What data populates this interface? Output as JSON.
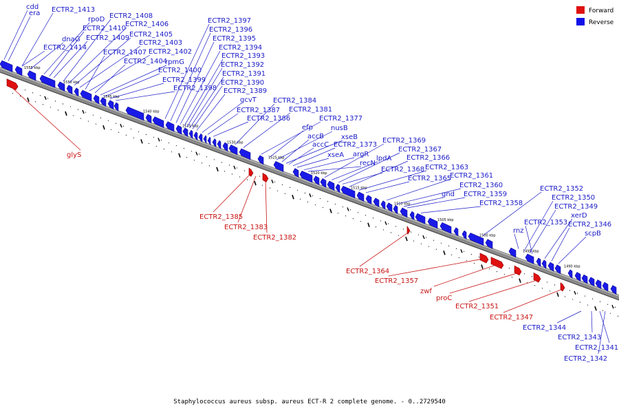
{
  "caption": "Staphylococcus aureus subsp. aureus ECT-R 2 complete genome. - 0..2729540",
  "legend": {
    "forward": {
      "label": "Forward",
      "color": "#e01010"
    },
    "reverse": {
      "label": "Reverse",
      "color": "#1010e8"
    }
  },
  "ticks": [
    "1555 kbp",
    "1550 kbp",
    "1545 kbp",
    "1540 kbp",
    "1535 kbp",
    "1530 kbp",
    "1525 kbp",
    "1520 kbp",
    "1515 kbp",
    "1510 kbp",
    "1505 kbp",
    "1500 kbp",
    "1495 kbp",
    "1490 kbp"
  ],
  "reverse_labels": [
    "cdd",
    "era",
    "ECTR2_1413",
    "ECTR2_1414",
    "dnaG",
    "rpoD",
    "ECTR2_1410",
    "ECTR2_1409",
    "ECTR2_1408",
    "ECTR2_1406",
    "ECTR2_1405",
    "ECTR2_1403",
    "ECTR2_1407",
    "ECTR2_1402",
    "ECTR2_1404",
    "rpmG",
    "ECTR2_1400",
    "ECTR2_1399",
    "ECTR2_1398",
    "ECTR2_1397",
    "ECTR2_1396",
    "ECTR2_1395",
    "ECTR2_1394",
    "ECTR2_1393",
    "ECTR2_1392",
    "ECTR2_1391",
    "ECTR2_1390",
    "ECTR2_1389",
    "gcvT",
    "ECTR2_1387",
    "ECTR2_1386",
    "ECTR2_1384",
    "ECTR2_1381",
    "ECTR2_1377",
    "efp",
    "nusB",
    "accB",
    "xseB",
    "accC",
    "ECTR2_1373",
    "xseA",
    "argR",
    "recN",
    "ECTR2_1369",
    "lpdA",
    "ECTR2_1367",
    "ECTR2_1368",
    "ECTR2_1366",
    "ECTR2_1363",
    "ECTR2_1365",
    "ECTR2_1361",
    "ECTR2_1360",
    "gnd",
    "ECTR2_1359",
    "ECTR2_1358",
    "ECTR2_1352",
    "rnz",
    "ECTR2_1350",
    "ECTR2_1349",
    "ECTR2_1353",
    "xerD",
    "ECTR2_1346",
    "scpB"
  ],
  "forward_labels": [
    "glyS",
    "ECTR2_1385",
    "ECTR2_1383",
    "ECTR2_1382",
    "ECTR2_1364",
    "ECTR2_1357",
    "zwf",
    "proC",
    "ECTR2_1351",
    "ECTR2_1347"
  ],
  "bottom_labels": [
    "ECTR2_1344",
    "ECTR2_1343",
    "ECTR2_1341",
    "ECTR2_1342"
  ]
}
